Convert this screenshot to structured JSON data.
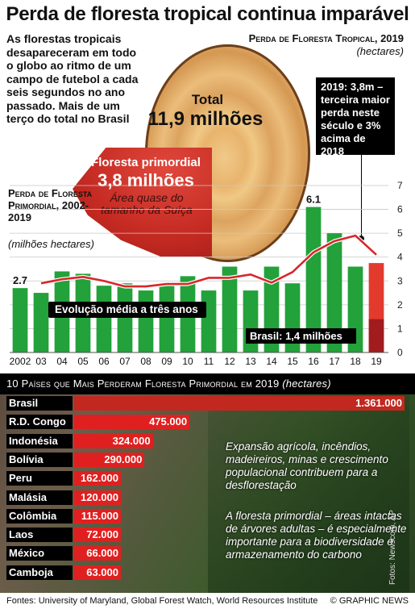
{
  "title": "Perda de floresta tropical continua imparável",
  "intro": "As florestas tropicais desapareceram em todo o globo ao ritmo de um campo de futebol a cada seis segundos no ano passado. Mais de um terço do total no Brasil",
  "right_title": "Perda de Floresta Tropical, 2019",
  "right_unit": "(hectares)",
  "total": {
    "label": "Total",
    "value": "11,9 milhões"
  },
  "primary": {
    "label": "Floresta primordial",
    "value": "3,8 milhões",
    "note": "Área quase do tamanho da Suíça"
  },
  "callout": "2019: 3,8m – terceira maior perda neste século e 3% acima de 2018",
  "left_title": "Perda de Floresta Primordial, 2002-2019",
  "left_unit": "(milhões hectares)",
  "avg_label": "Evolução média a três anos",
  "brasil_label": "Brasil: 1,4 milhões",
  "chart_data": {
    "type": "bar",
    "categories": [
      "2002",
      "03",
      "04",
      "05",
      "06",
      "07",
      "08",
      "09",
      "10",
      "11",
      "12",
      "13",
      "14",
      "15",
      "16",
      "17",
      "18",
      "19"
    ],
    "series": [
      {
        "values": [
          2.7,
          2.5,
          3.4,
          3.3,
          2.8,
          2.9,
          2.6,
          2.8,
          3.2,
          2.6,
          3.6,
          2.6,
          3.6,
          2.9,
          6.1,
          5.0,
          3.6,
          3.75
        ]
      },
      {
        "name": "Evolução média a três anos",
        "values": [
          null,
          2.9,
          3.07,
          3.17,
          3.0,
          2.77,
          2.77,
          2.87,
          2.87,
          3.13,
          3.13,
          3.27,
          2.93,
          3.37,
          4.2,
          4.67,
          4.9,
          4.1
        ]
      }
    ],
    "highlight": {
      "category": "19",
      "label": "Brasil",
      "value": 1.4
    },
    "data_labels": [
      {
        "category": "2002",
        "text": "2.7"
      },
      {
        "category": "16",
        "text": "6.1"
      }
    ],
    "ylim": [
      0,
      7
    ],
    "yticks": [
      "0",
      "1",
      "2",
      "3",
      "4",
      "5",
      "6",
      "7"
    ],
    "grid": true,
    "colors": {
      "bar": "#23a13a",
      "last_bar": "#e23b2e",
      "brasil": "#a11c1c",
      "line": "#d8272a"
    }
  },
  "countries": {
    "header": "10 Países que Mais Perderam Floresta Primordial em 2019",
    "unit": "(hectares)",
    "items": [
      {
        "name": "Brasil",
        "value": 1361000,
        "label": "1.361.000"
      },
      {
        "name": "R.D. Congo",
        "value": 475000,
        "label": "475.000"
      },
      {
        "name": "Indonésia",
        "value": 324000,
        "label": "324.000"
      },
      {
        "name": "Bolívia",
        "value": 290000,
        "label": "290.000"
      },
      {
        "name": "Peru",
        "value": 162000,
        "label": "162.000"
      },
      {
        "name": "Malásia",
        "value": 120000,
        "label": "120.000"
      },
      {
        "name": "Colômbia",
        "value": 115000,
        "label": "115.000"
      },
      {
        "name": "Laos",
        "value": 72000,
        "label": "72.000"
      },
      {
        "name": "México",
        "value": 66000,
        "label": "66.000"
      },
      {
        "name": "Camboja",
        "value": 63000,
        "label": "63.000"
      }
    ]
  },
  "notes": [
    "Expansão agrícola, incêndios, madeireiros, minas e crescimento populacional contribuem para a desflorestação",
    "A floresta primordial – áreas intactas de árvores adultas – é especialmente importante para a biodiversidade e armazenamento do carbono"
  ],
  "photo_credit": "Fotos: Newscom, AP",
  "footer": {
    "sources": "Fontes: University of Maryland, Global Forest Watch, World Resources Institute",
    "copyright": "© GRAPHIC NEWS"
  }
}
